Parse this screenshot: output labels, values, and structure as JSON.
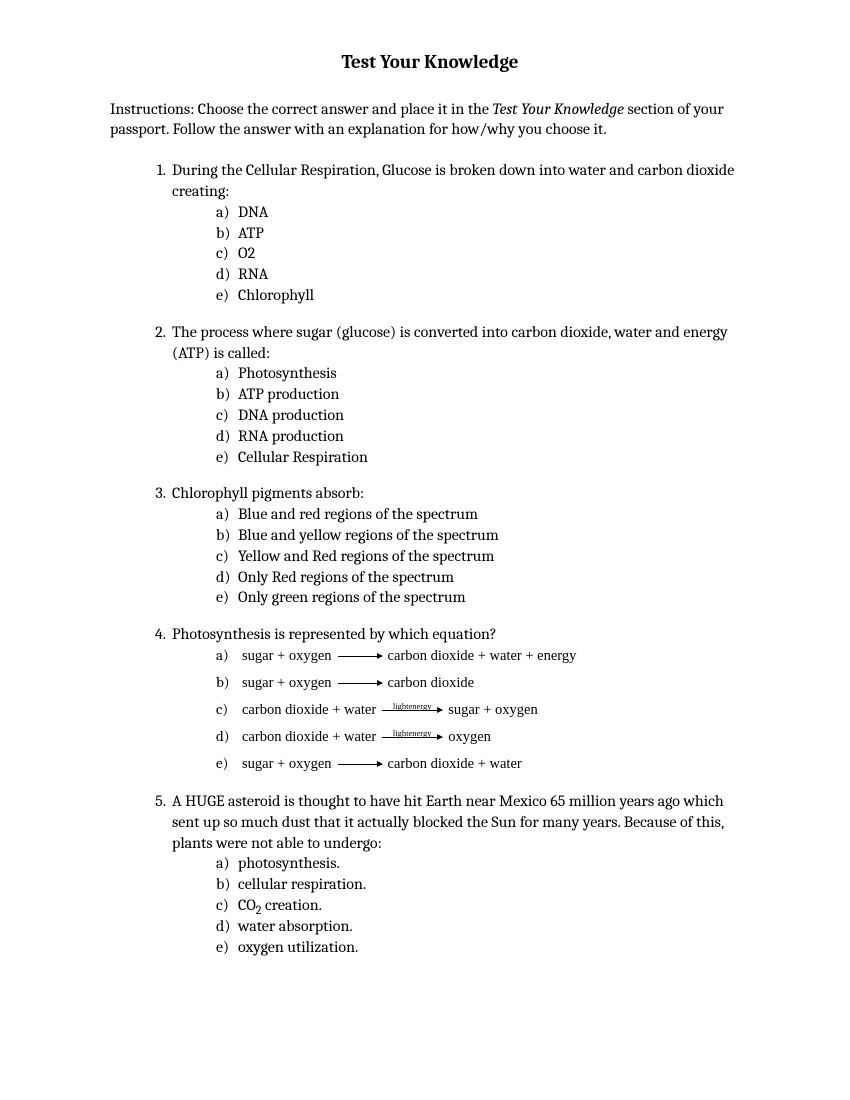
{
  "title": "Test Your Knowledge",
  "instructions_pre": "Instructions: Choose the correct answer and place it in the ",
  "instructions_italic": "Test Your Knowledge",
  "instructions_post": " section of your passport. Follow the answer with an explanation for how/why you choose it.",
  "questions": [
    {
      "num": "1.",
      "text": "During the Cellular Respiration, Glucose is broken down into water and carbon dioxide creating:",
      "options": [
        {
          "letter": "a)",
          "text": "DNA"
        },
        {
          "letter": "b)",
          "text": "ATP"
        },
        {
          "letter": "c)",
          "text": "O2"
        },
        {
          "letter": "d)",
          "text": "RNA"
        },
        {
          "letter": "e)",
          "text": "Chlorophyll"
        }
      ]
    },
    {
      "num": "2.",
      "text": "The process where sugar (glucose) is converted into carbon dioxide, water and energy (ATP) is called:",
      "options": [
        {
          "letter": "a)",
          "text": "Photosynthesis"
        },
        {
          "letter": "b)",
          "text": "ATP production"
        },
        {
          "letter": "c)",
          "text": "DNA production"
        },
        {
          "letter": "d)",
          "text": "RNA production"
        },
        {
          "letter": "e)",
          "text": "Cellular Respiration"
        }
      ]
    },
    {
      "num": "3.",
      "text": "Chlorophyll pigments absorb:",
      "options": [
        {
          "letter": "a)",
          "text": "Blue and red regions of the spectrum"
        },
        {
          "letter": "b)",
          "text": "Blue and yellow regions of  the spectrum"
        },
        {
          "letter": "c)",
          "text": "Yellow and Red regions of the spectrum"
        },
        {
          "letter": "d)",
          "text": "Only Red regions of the spectrum"
        },
        {
          "letter": "e)",
          "text": "Only green regions of the spectrum"
        }
      ]
    },
    {
      "num": "4.",
      "text": "Photosynthesis is represented by which equation?",
      "eq_options": [
        {
          "letter": "a)",
          "left": "sugar + oxygen",
          "label": "",
          "arrow_width": 44,
          "right": "carbon dioxide + water + energy"
        },
        {
          "letter": "b)",
          "left": "sugar + oxygen ",
          "label": "",
          "arrow_width": 44,
          "right": " carbon dioxide"
        },
        {
          "letter": "c)",
          "left": "carbon dioxide  + water ",
          "label": "lightenergy",
          "arrow_width": 60,
          "right": " sugar + oxygen"
        },
        {
          "letter": "d)",
          "left": "carbon dioxide  + water ",
          "label": "lightenergy",
          "arrow_width": 60,
          "right": " oxygen"
        },
        {
          "letter": "e)",
          "left": "sugar + oxygen ",
          "label": "",
          "arrow_width": 44,
          "right": " carbon dioxide  + water"
        }
      ]
    },
    {
      "num": "5.",
      "text": "A HUGE asteroid is thought to have hit Earth near Mexico 65 million years ago which sent up so much dust that it actually blocked the Sun for many years. Because of this, plants were not able to undergo:",
      "options": [
        {
          "letter": "a)",
          "text": "photosynthesis."
        },
        {
          "letter": "b)",
          "text": "cellular respiration."
        },
        {
          "letter": "c)",
          "text_html": "CO2 creation.",
          "co2": true
        },
        {
          "letter": "d)",
          "text": "water absorption."
        },
        {
          "letter": "e)",
          "text": "oxygen utilization."
        }
      ]
    }
  ]
}
